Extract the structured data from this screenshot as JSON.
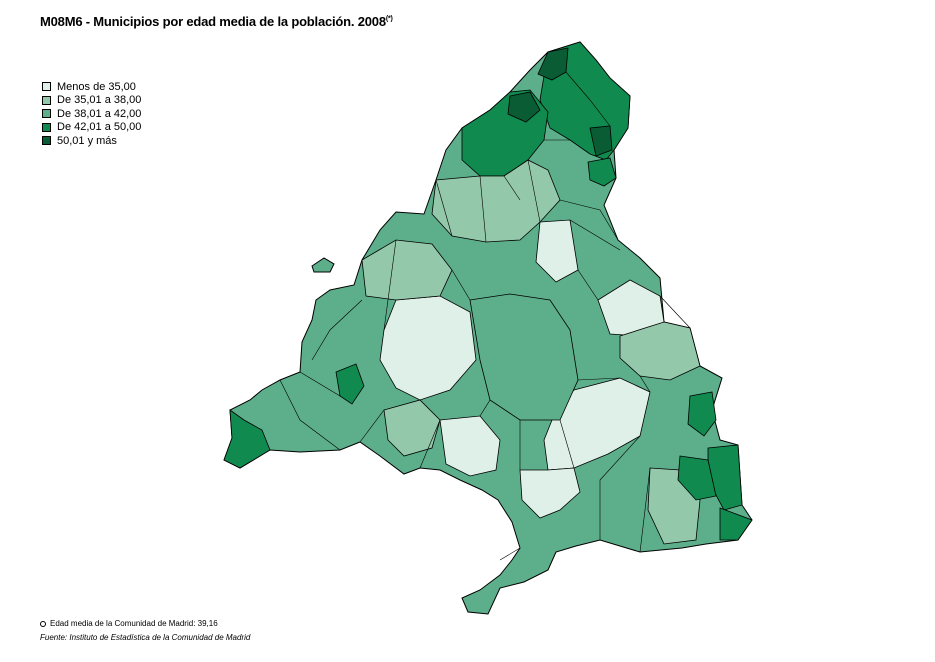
{
  "header": {
    "title": "M08M6 - Municipios por edad media de la población. 2008",
    "title_sup": "(*)"
  },
  "legend": {
    "items": [
      {
        "label": "Menos de 35,00",
        "color": "#dff0e8"
      },
      {
        "label": "De 35,01 a 38,00",
        "color": "#93c8aa"
      },
      {
        "label": "De 38,01 a 42,00",
        "color": "#5daf8b"
      },
      {
        "label": "De 42,01 a 50,00",
        "color": "#108a4e"
      },
      {
        "label": "50,01 y más",
        "color": "#0a5c35"
      }
    ]
  },
  "footer": {
    "note": "Edad media de la Comunidad de Madrid: 39,16",
    "source": "Fuente: Instituto de Estadística de la Comunidad de Madrid"
  }
}
